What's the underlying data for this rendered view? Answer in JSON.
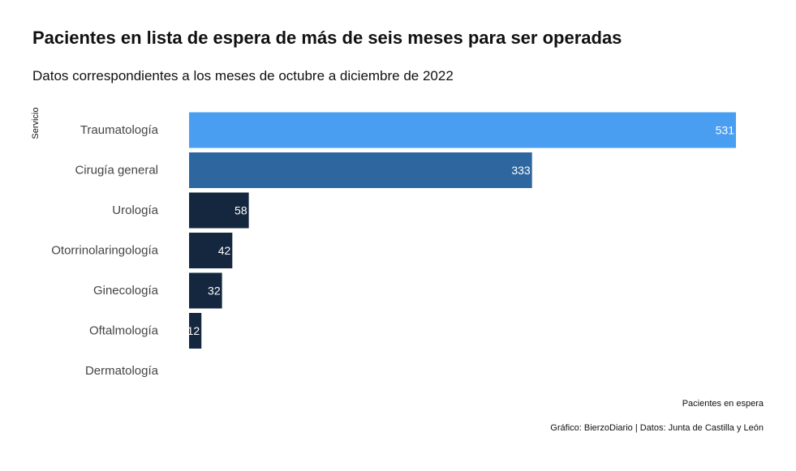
{
  "chart_data": {
    "type": "bar",
    "orientation": "horizontal",
    "title": "Pacientes en lista de espera de más de seis meses para ser operadas",
    "subtitle": "Datos correspondientes a los meses de octubre a diciembre de 2022",
    "ylabel": "Servicio",
    "xlabel": "Pacientes en espera",
    "caption": "Gráfico: BierzoDiario | Datos: Junta de Castilla y León",
    "categories": [
      "Traumatología",
      "Cirugía general",
      "Urología",
      "Otorrinolaringología",
      "Ginecología",
      "Oftalmología",
      "Dermatología"
    ],
    "values": [
      531,
      333,
      58,
      42,
      32,
      12,
      0
    ],
    "value_labels": [
      "531",
      "333",
      "58",
      "42",
      "32",
      "12",
      ""
    ],
    "bar_colors": [
      "#4a9ef2",
      "#2e679f",
      "#15273f",
      "#15273f",
      "#15273f",
      "#15273f",
      "#15273f"
    ],
    "xlim": [
      0,
      531
    ],
    "grid": false,
    "legend": false
  }
}
